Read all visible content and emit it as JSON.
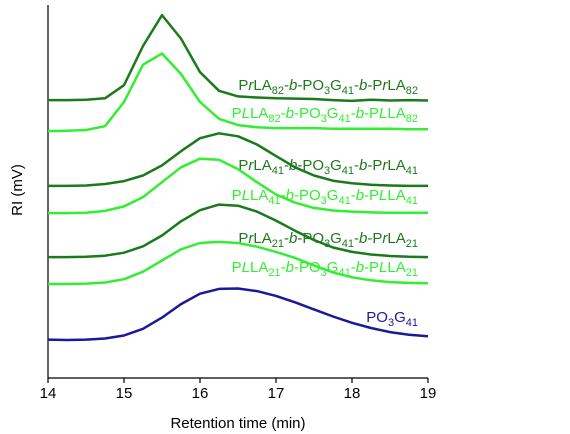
{
  "chart_data": {
    "type": "line",
    "xlabel": "Retention time (min)",
    "ylabel": "RI (mV)",
    "x": [
      14,
      14.25,
      14.5,
      14.75,
      15,
      15.25,
      15.5,
      15.75,
      16,
      16.25,
      16.5,
      16.75,
      17,
      17.25,
      17.5,
      17.75,
      18,
      18.25,
      18.5,
      18.75,
      19
    ],
    "xlim": [
      14,
      19
    ],
    "xticks": [
      14,
      15,
      16,
      17,
      18,
      19
    ],
    "ylim": [
      0,
      100
    ],
    "series": [
      {
        "name": "PrLA82-b-PO3G41-b-PrLA82",
        "color": "#1c7a1c",
        "values": [
          74.5,
          74.5,
          74.6,
          75.0,
          78.5,
          89,
          97.3,
          91,
          82,
          77,
          75.5,
          75.2,
          75,
          74.9,
          74.8,
          74.5,
          74.3,
          74.6,
          74.4,
          74.5,
          74.4
        ]
      },
      {
        "name": "PLLA82-b-PO3G41-b-PLLA82",
        "color": "#33ee33",
        "values": [
          66.2,
          66.3,
          66.5,
          67.5,
          74,
          84,
          87,
          81.5,
          74,
          69.5,
          67.8,
          67.2,
          67.0,
          67.0,
          67.0,
          66.8,
          66.8,
          66.8,
          66.8,
          66.7,
          66.7
        ]
      },
      {
        "name": "PrLA41-b-PO3G41-b-PrLA41",
        "color": "#1c7a1c",
        "values": [
          51.5,
          51.5,
          51.6,
          52.0,
          52.8,
          54.3,
          57.0,
          60.8,
          64.3,
          65.6,
          64.8,
          62.6,
          59.5,
          56.5,
          54.3,
          52.9,
          52.2,
          51.8,
          51.6,
          51.5,
          51.5
        ]
      },
      {
        "name": "PLLA41-b-PO3G41-b-PLLA41",
        "color": "#33ee33",
        "values": [
          44.2,
          44.2,
          44.3,
          44.8,
          46,
          48.5,
          52.5,
          56.5,
          58.8,
          58.5,
          56,
          52.5,
          49.2,
          47,
          45.6,
          44.9,
          44.6,
          44.4,
          44.3,
          44.3,
          44.3
        ]
      },
      {
        "name": "PrLA21-b-PO3G41-b-PrLA21",
        "color": "#1c7a1c",
        "values": [
          32.4,
          32.4,
          32.5,
          32.8,
          33.6,
          35.3,
          38.2,
          42,
          45,
          46.5,
          46.2,
          44.6,
          42.2,
          39.5,
          37,
          35,
          33.8,
          33.1,
          32.7,
          32.5,
          32.4
        ]
      },
      {
        "name": "PLLA21-b-PO3G41-b-PLLA21",
        "color": "#33ee33",
        "values": [
          25.2,
          25.2,
          25.3,
          25.6,
          26.5,
          28.5,
          31.5,
          34.5,
          36.2,
          36.5,
          36.2,
          35.2,
          33.8,
          32.2,
          30.2,
          28.3,
          27,
          26.2,
          25.7,
          25.5,
          25.4
        ]
      },
      {
        "name": "PO3G41",
        "color": "#1a1a99",
        "values": [
          10.3,
          10.2,
          10.3,
          10.6,
          11.4,
          13.2,
          16.2,
          19.8,
          22.6,
          23.9,
          24.0,
          23.3,
          22.0,
          20.3,
          18.4,
          16.5,
          14.8,
          13.4,
          12.3,
          11.6,
          11.2
        ]
      }
    ]
  }
}
